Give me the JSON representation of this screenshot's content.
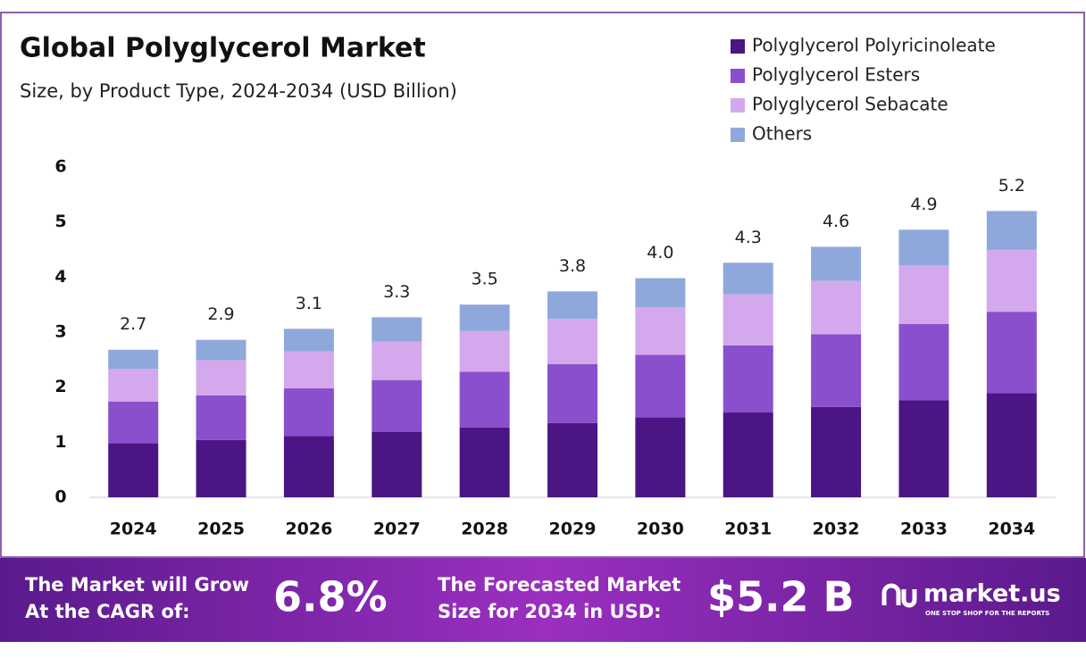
{
  "chart_data": {
    "type": "stacked_bar",
    "title": "Global Polyglycerol Market",
    "subtitle": "Size, by Product Type, 2024-2034 (USD Billion)",
    "categories": [
      "2024",
      "2025",
      "2026",
      "2027",
      "2028",
      "2029",
      "2030",
      "2031",
      "2032",
      "2033",
      "2034"
    ],
    "series": [
      {
        "name": "Polyglycerol Polyricinoleate",
        "color": "#4b1584",
        "values": [
          0.98,
          1.04,
          1.11,
          1.19,
          1.27,
          1.35,
          1.45,
          1.54,
          1.64,
          1.76,
          1.89
        ]
      },
      {
        "name": "Polyglycerol Esters",
        "color": "#8a4fcc",
        "values": [
          0.76,
          0.81,
          0.87,
          0.94,
          1.01,
          1.07,
          1.14,
          1.22,
          1.32,
          1.39,
          1.48
        ]
      },
      {
        "name": "Polyglycerol Sebacate",
        "color": "#d4a8ec",
        "values": [
          0.59,
          0.64,
          0.67,
          0.7,
          0.74,
          0.82,
          0.86,
          0.93,
          0.97,
          1.06,
          1.13
        ]
      },
      {
        "name": "Others",
        "color": "#8fa8dc",
        "values": [
          0.35,
          0.37,
          0.41,
          0.44,
          0.48,
          0.5,
          0.53,
          0.57,
          0.62,
          0.65,
          0.7
        ]
      }
    ],
    "totals": {
      "values": [
        2.7,
        2.9,
        3.1,
        3.3,
        3.5,
        3.8,
        4.0,
        4.3,
        4.6,
        4.9,
        5.2
      ],
      "value_labels": [
        "2.7",
        "2.9",
        "3.1",
        "3.3",
        "3.5",
        "3.8",
        "4.0",
        "4.3",
        "4.6",
        "4.9",
        "5.2"
      ]
    },
    "ylim": [
      0,
      6
    ],
    "yticks": [
      0,
      1,
      2,
      3,
      4,
      5,
      6
    ],
    "legend": "top-right"
  },
  "footer": {
    "cagr_text": [
      "The Market will Grow",
      "At the CAGR of:"
    ],
    "cagr_value": "6.8%",
    "forecast_text": [
      "The Forecasted Market",
      "Size for 2034 in USD:"
    ],
    "forecast_value": "$5.2 B",
    "brand": "market.us",
    "tagline": "ONE STOP SHOP FOR THE REPORTS"
  }
}
